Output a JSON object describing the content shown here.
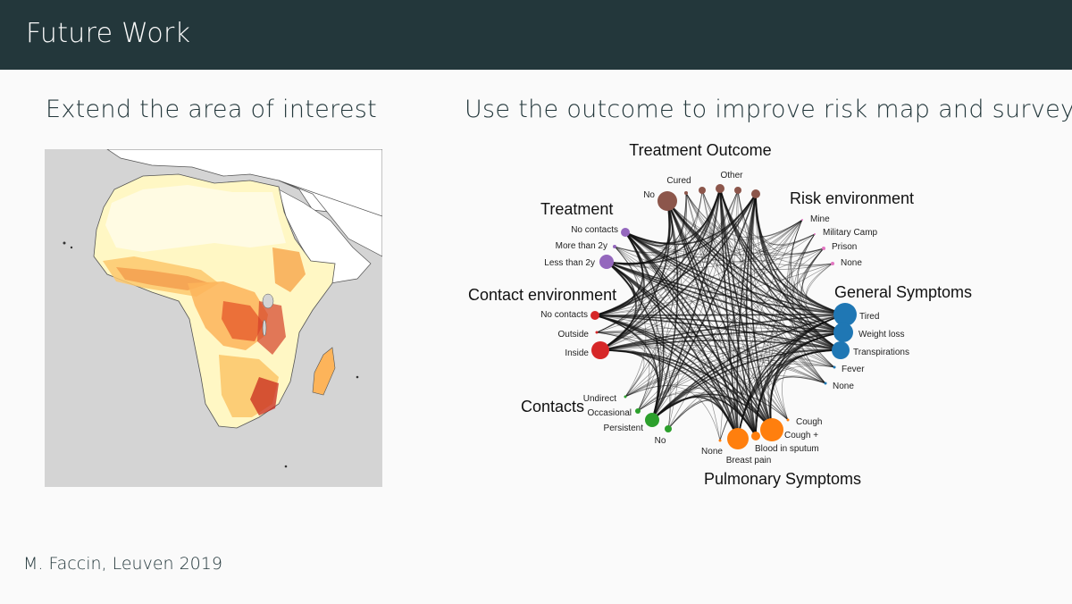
{
  "header": {
    "title": "Future Work"
  },
  "left": {
    "heading": "Extend the area of interest"
  },
  "right": {
    "heading": "Use the outcome to improve risk map and survey"
  },
  "footer": {
    "text": "M. Faccin, Leuven 2019"
  },
  "diagram": {
    "groups": [
      {
        "name": "Treatment Outcome",
        "color": "#8c564b",
        "nodes": [
          "No",
          "Cured",
          "Other"
        ]
      },
      {
        "name": "Risk environment",
        "color": "#e377c2",
        "nodes": [
          "Mine",
          "Military Camp",
          "Prison",
          "None"
        ]
      },
      {
        "name": "General Symptoms",
        "color": "#1f77b4",
        "nodes": [
          "Tired",
          "Weight loss",
          "Transpirations",
          "Fever",
          "None"
        ]
      },
      {
        "name": "Pulmonary Symptoms",
        "color": "#ff7f0e",
        "nodes": [
          "Cough",
          "Cough +",
          "Blood in sputum",
          "Breast pain",
          "None"
        ]
      },
      {
        "name": "Contacts",
        "color": "#2ca02c",
        "nodes": [
          "Undirect",
          "Occasional",
          "Persistent",
          "No"
        ]
      },
      {
        "name": "Contact environment",
        "color": "#d62728",
        "nodes": [
          "No contacts",
          "Outside",
          "Inside"
        ]
      },
      {
        "name": "Treatment",
        "color": "#9467bd",
        "nodes": [
          "No contacts",
          "More than 2y",
          "Less than 2y"
        ]
      }
    ]
  }
}
